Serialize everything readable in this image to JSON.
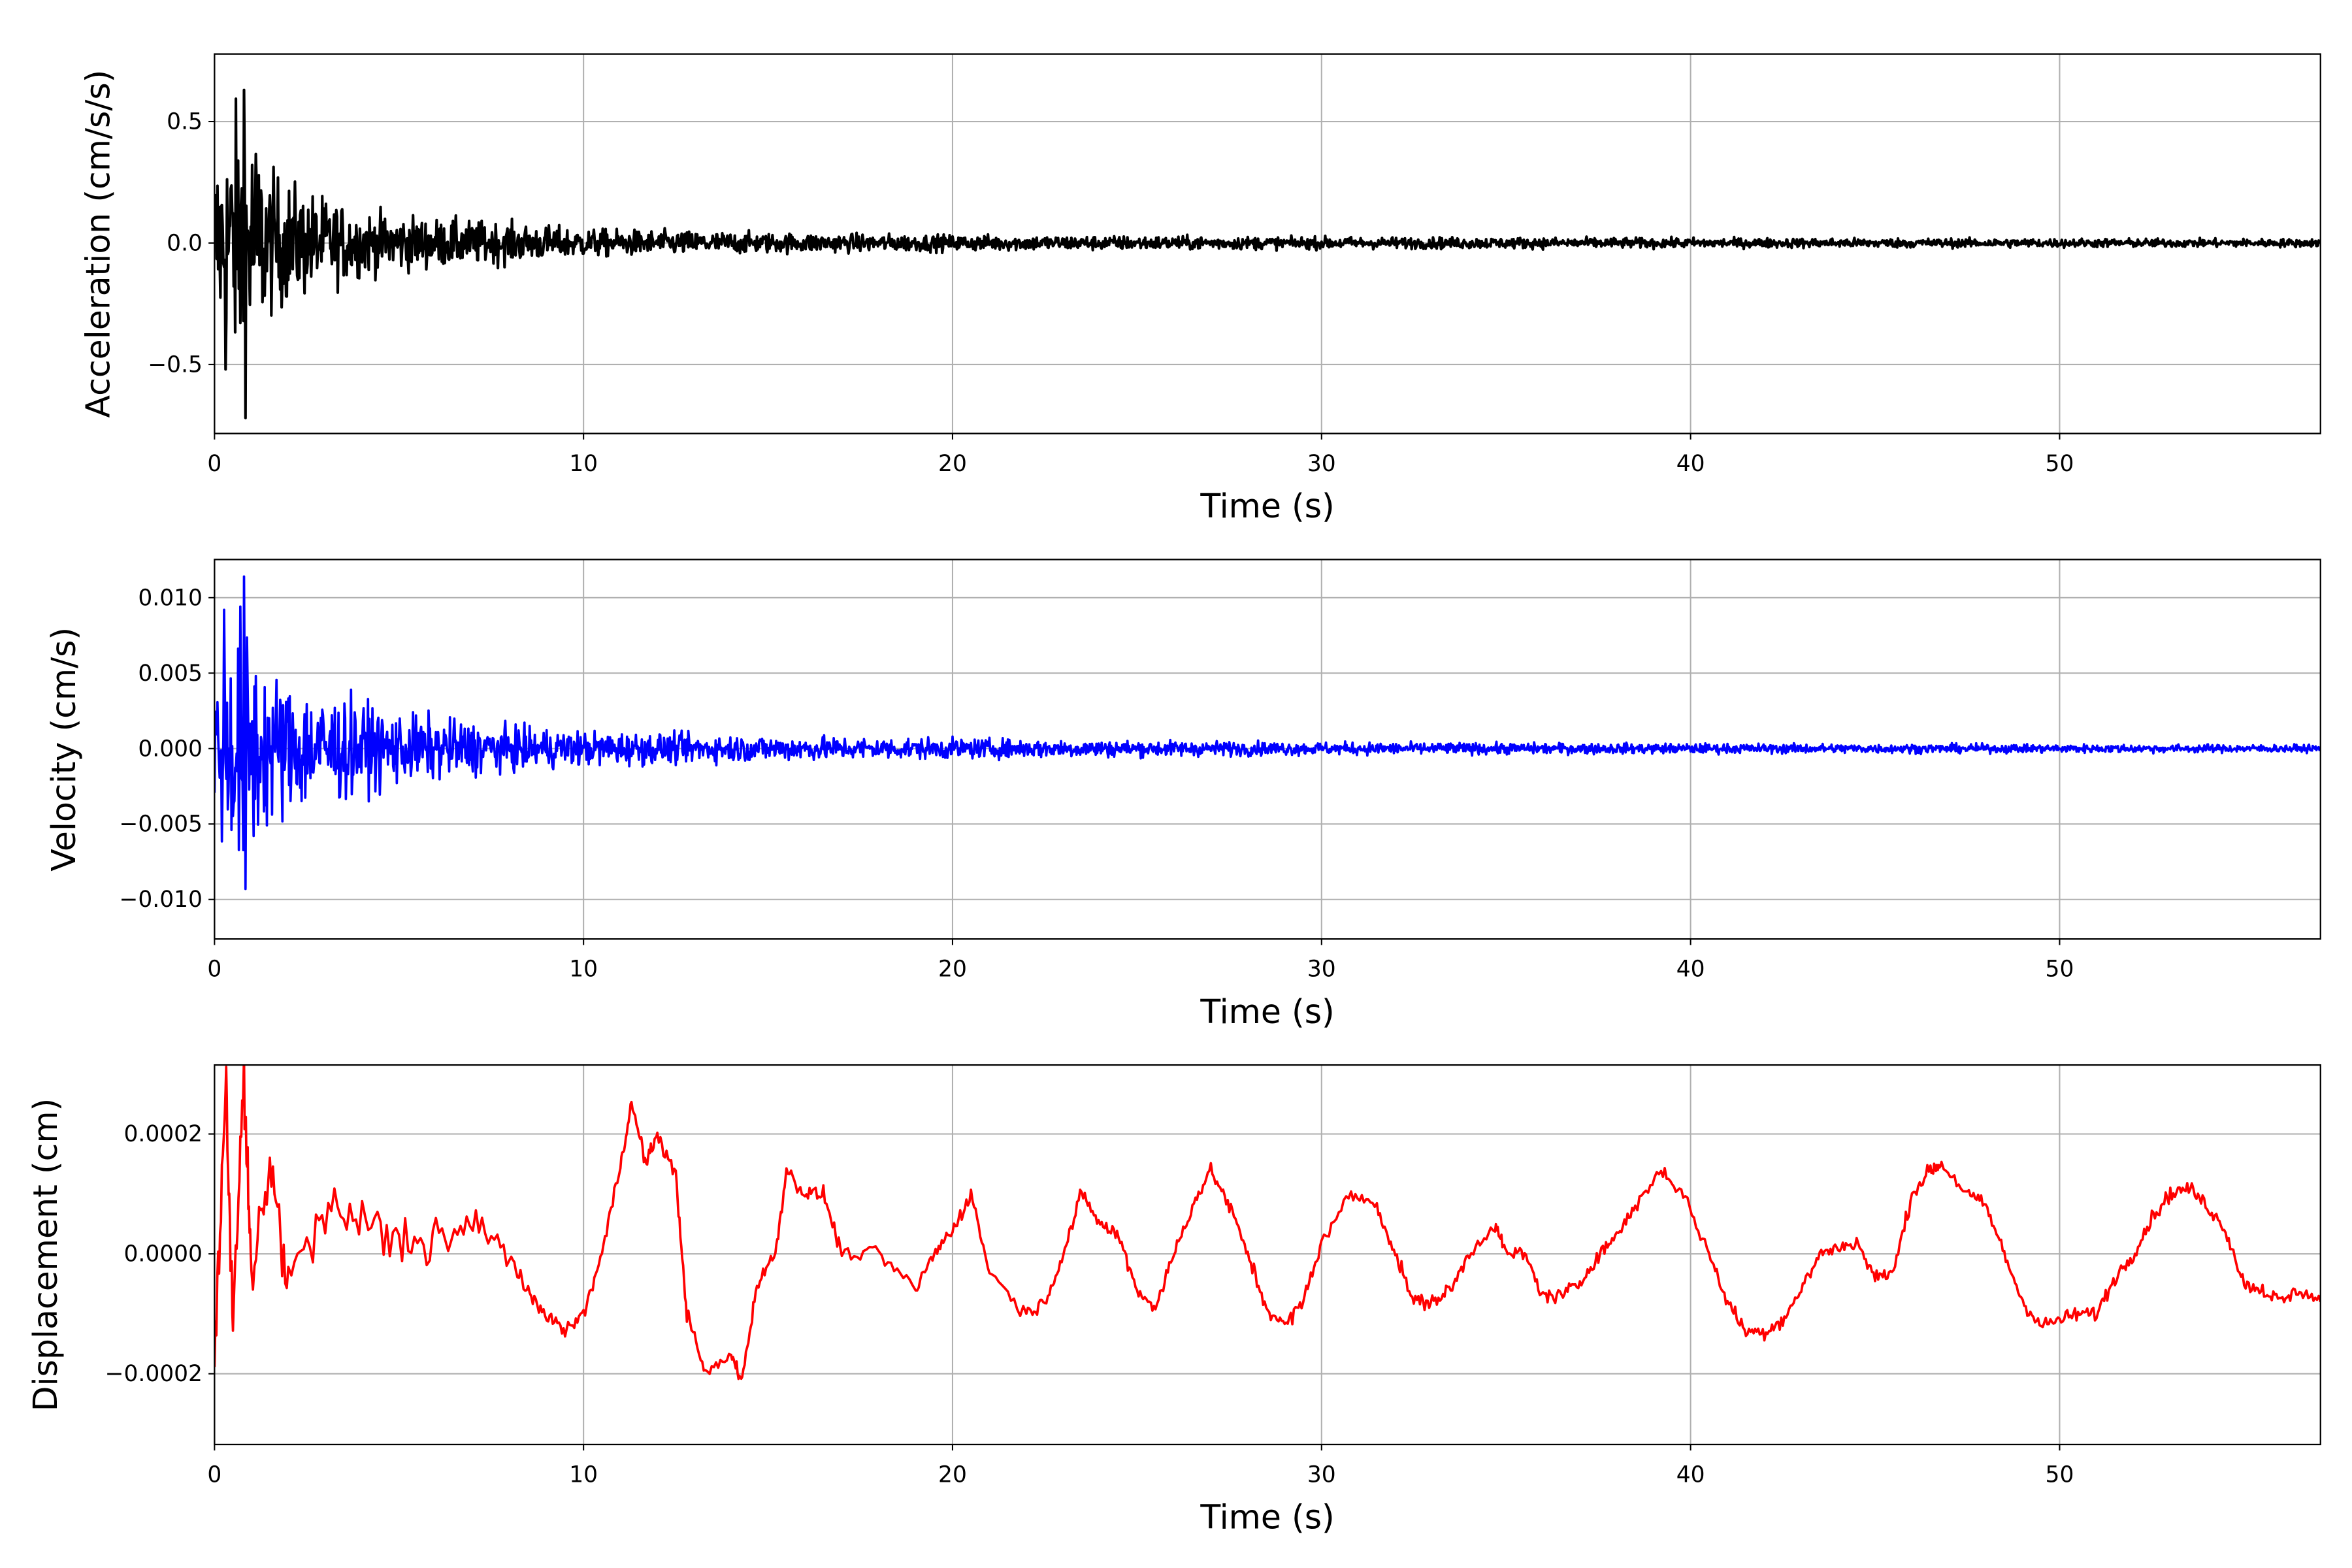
{
  "chart_data": [
    {
      "type": "line",
      "title": "",
      "xlabel": "Time (s)",
      "ylabel": "Acceleration (cm/s/s)",
      "xlim": [
        0,
        57.07
      ],
      "ylim": [
        -0.784,
        0.778
      ],
      "xticks": [
        0,
        10,
        20,
        30,
        40,
        50
      ],
      "xtick_labels": [
        "0",
        "10",
        "20",
        "30",
        "40",
        "50"
      ],
      "yticks": [
        0.5,
        0.0,
        -0.5
      ],
      "ytick_labels": [
        "0.5",
        "0.0",
        "−0.5"
      ],
      "grid": true,
      "color": "#000000",
      "series": [
        {
          "name": "acceleration",
          "kind": "noise-envelope",
          "dt": 0.02,
          "envelope_t": [
            0,
            0.8,
            1.5,
            2.5,
            4,
            6,
            8,
            10,
            15,
            20,
            30,
            40,
            57.07
          ],
          "envelope_amp": [
            0.45,
            0.72,
            0.35,
            0.26,
            0.16,
            0.12,
            0.1,
            0.07,
            0.05,
            0.04,
            0.03,
            0.025,
            0.02
          ],
          "peaks": [
            {
              "t": 0.8,
              "y": 0.63
            },
            {
              "t": 0.85,
              "y": -0.72
            },
            {
              "t": 0.3,
              "y": -0.52
            }
          ]
        }
      ]
    },
    {
      "type": "line",
      "title": "",
      "xlabel": "Time (s)",
      "ylabel": "Velocity (cm/s)",
      "xlim": [
        0,
        57.07
      ],
      "ylim": [
        -0.01262,
        0.01253
      ],
      "xticks": [
        0,
        10,
        20,
        30,
        40,
        50
      ],
      "xtick_labels": [
        "0",
        "10",
        "20",
        "30",
        "40",
        "50"
      ],
      "yticks": [
        0.01,
        0.005,
        0.0,
        -0.005,
        -0.01
      ],
      "ytick_labels": [
        "0.010",
        "0.005",
        "0.000",
        "−0.005",
        "−0.010"
      ],
      "grid": true,
      "color": "#0000ff",
      "series": [
        {
          "name": "velocity",
          "kind": "noise-envelope",
          "dt": 0.02,
          "envelope_t": [
            0,
            0.8,
            1.5,
            3,
            5,
            8,
            10,
            15,
            20,
            30,
            40,
            57.07
          ],
          "envelope_amp": [
            0.007,
            0.011,
            0.006,
            0.0045,
            0.0028,
            0.0018,
            0.0014,
            0.001,
            0.0008,
            0.0005,
            0.0004,
            0.0003
          ],
          "peaks": [
            {
              "t": 0.8,
              "y": 0.0114
            },
            {
              "t": 0.85,
              "y": -0.0093
            },
            {
              "t": 0.25,
              "y": 0.0092
            }
          ]
        }
      ]
    },
    {
      "type": "line",
      "title": "",
      "xlabel": "Time (s)",
      "ylabel": "Displacement (cm)",
      "xlim": [
        0,
        57.07
      ],
      "ylim": [
        -0.000318,
        0.000315
      ],
      "xticks": [
        0,
        10,
        20,
        30,
        40,
        50
      ],
      "xtick_labels": [
        "0",
        "10",
        "20",
        "30",
        "40",
        "50"
      ],
      "yticks": [
        0.0002,
        0.0,
        -0.0002
      ],
      "ytick_labels": [
        "0.0002",
        "0.0000",
        "−0.0002"
      ],
      "grid": true,
      "color": "#ff0000",
      "series": [
        {
          "name": "displacement",
          "kind": "points",
          "x": [
            0,
            0.3,
            0.5,
            0.8,
            1,
            1.5,
            2,
            3,
            4,
            5,
            6,
            7,
            8,
            8.5,
            9,
            9.5,
            10,
            10.5,
            11,
            11.3,
            11.7,
            12,
            12.5,
            12.8,
            13.3,
            14,
            14.3,
            14.7,
            15.2,
            15.5,
            16,
            16.5,
            17,
            18,
            19,
            19.5,
            20,
            20.5,
            21,
            22,
            22.5,
            23,
            23.5,
            24,
            24.5,
            25,
            25.5,
            26,
            26.5,
            27,
            27.5,
            28,
            28.5,
            29,
            29.5,
            30,
            30.8,
            31.5,
            32,
            32.5,
            33,
            33.5,
            34,
            34.7,
            35,
            35.5,
            36,
            36.5,
            37,
            37.5,
            38,
            38.5,
            39.2,
            39.8,
            40.5,
            41,
            41.5,
            42,
            42.5,
            43,
            43.5,
            44,
            44.5,
            45,
            45.5,
            46,
            46.5,
            46.8,
            47.5,
            48,
            48.5,
            49,
            49.5,
            50,
            50.5,
            51,
            51.5,
            52,
            52.5,
            53,
            53.5,
            54,
            54.5,
            55,
            55.5,
            56,
            56.5,
            57.07
          ],
          "y": [
            -0.00018,
            0.00028,
            -0.0001,
            0.00029,
            -5e-05,
            0.00015,
            -5e-05,
            7e-05,
            5e-05,
            2e-05,
            3e-05,
            4e-05,
            0.0,
            -7e-05,
            -0.0001,
            -0.00013,
            -0.0001,
            0.0,
            0.00015,
            0.00025,
            0.00015,
            0.0002,
            0.00013,
            -0.0001,
            -0.0002,
            -0.00017,
            -0.00021,
            -5e-05,
            0.0,
            0.00014,
            0.0001,
            0.0001,
            0.0,
            0.0,
            -6e-05,
            0.0,
            4e-05,
            0.0001,
            -3e-05,
            -0.0001,
            -8e-05,
            0.0,
            0.0001,
            5e-05,
            3e-05,
            -6e-05,
            -9e-05,
            0.0,
            8e-05,
            0.00014,
            8e-05,
            0.0,
            -9e-05,
            -0.00012,
            -8e-05,
            2e-05,
            0.0001,
            8e-05,
            0.0,
            -8e-05,
            -8e-05,
            -6e-05,
            0.0,
            5e-05,
            0.0,
            0.0,
            -7e-05,
            -7e-05,
            -5e-05,
            0.0,
            3e-05,
            8e-05,
            0.00014,
            0.0001,
            0.0,
            -8e-05,
            -0.00013,
            -0.00013,
            -0.00011,
            -6e-05,
            0.0,
            1e-05,
            2e-05,
            -4e-05,
            -3e-05,
            0.0001,
            0.00014,
            0.00015,
            0.0001,
            8e-05,
            0.0,
            -8e-05,
            -0.00012,
            -0.00011,
            -0.0001,
            -0.0001,
            -4e-05,
            0.0,
            6e-05,
            0.0001,
            0.00011,
            8e-05,
            4e-05,
            -5e-05,
            -6e-05,
            -8e-05,
            -6e-05,
            -8e-05
          ]
        }
      ]
    }
  ]
}
